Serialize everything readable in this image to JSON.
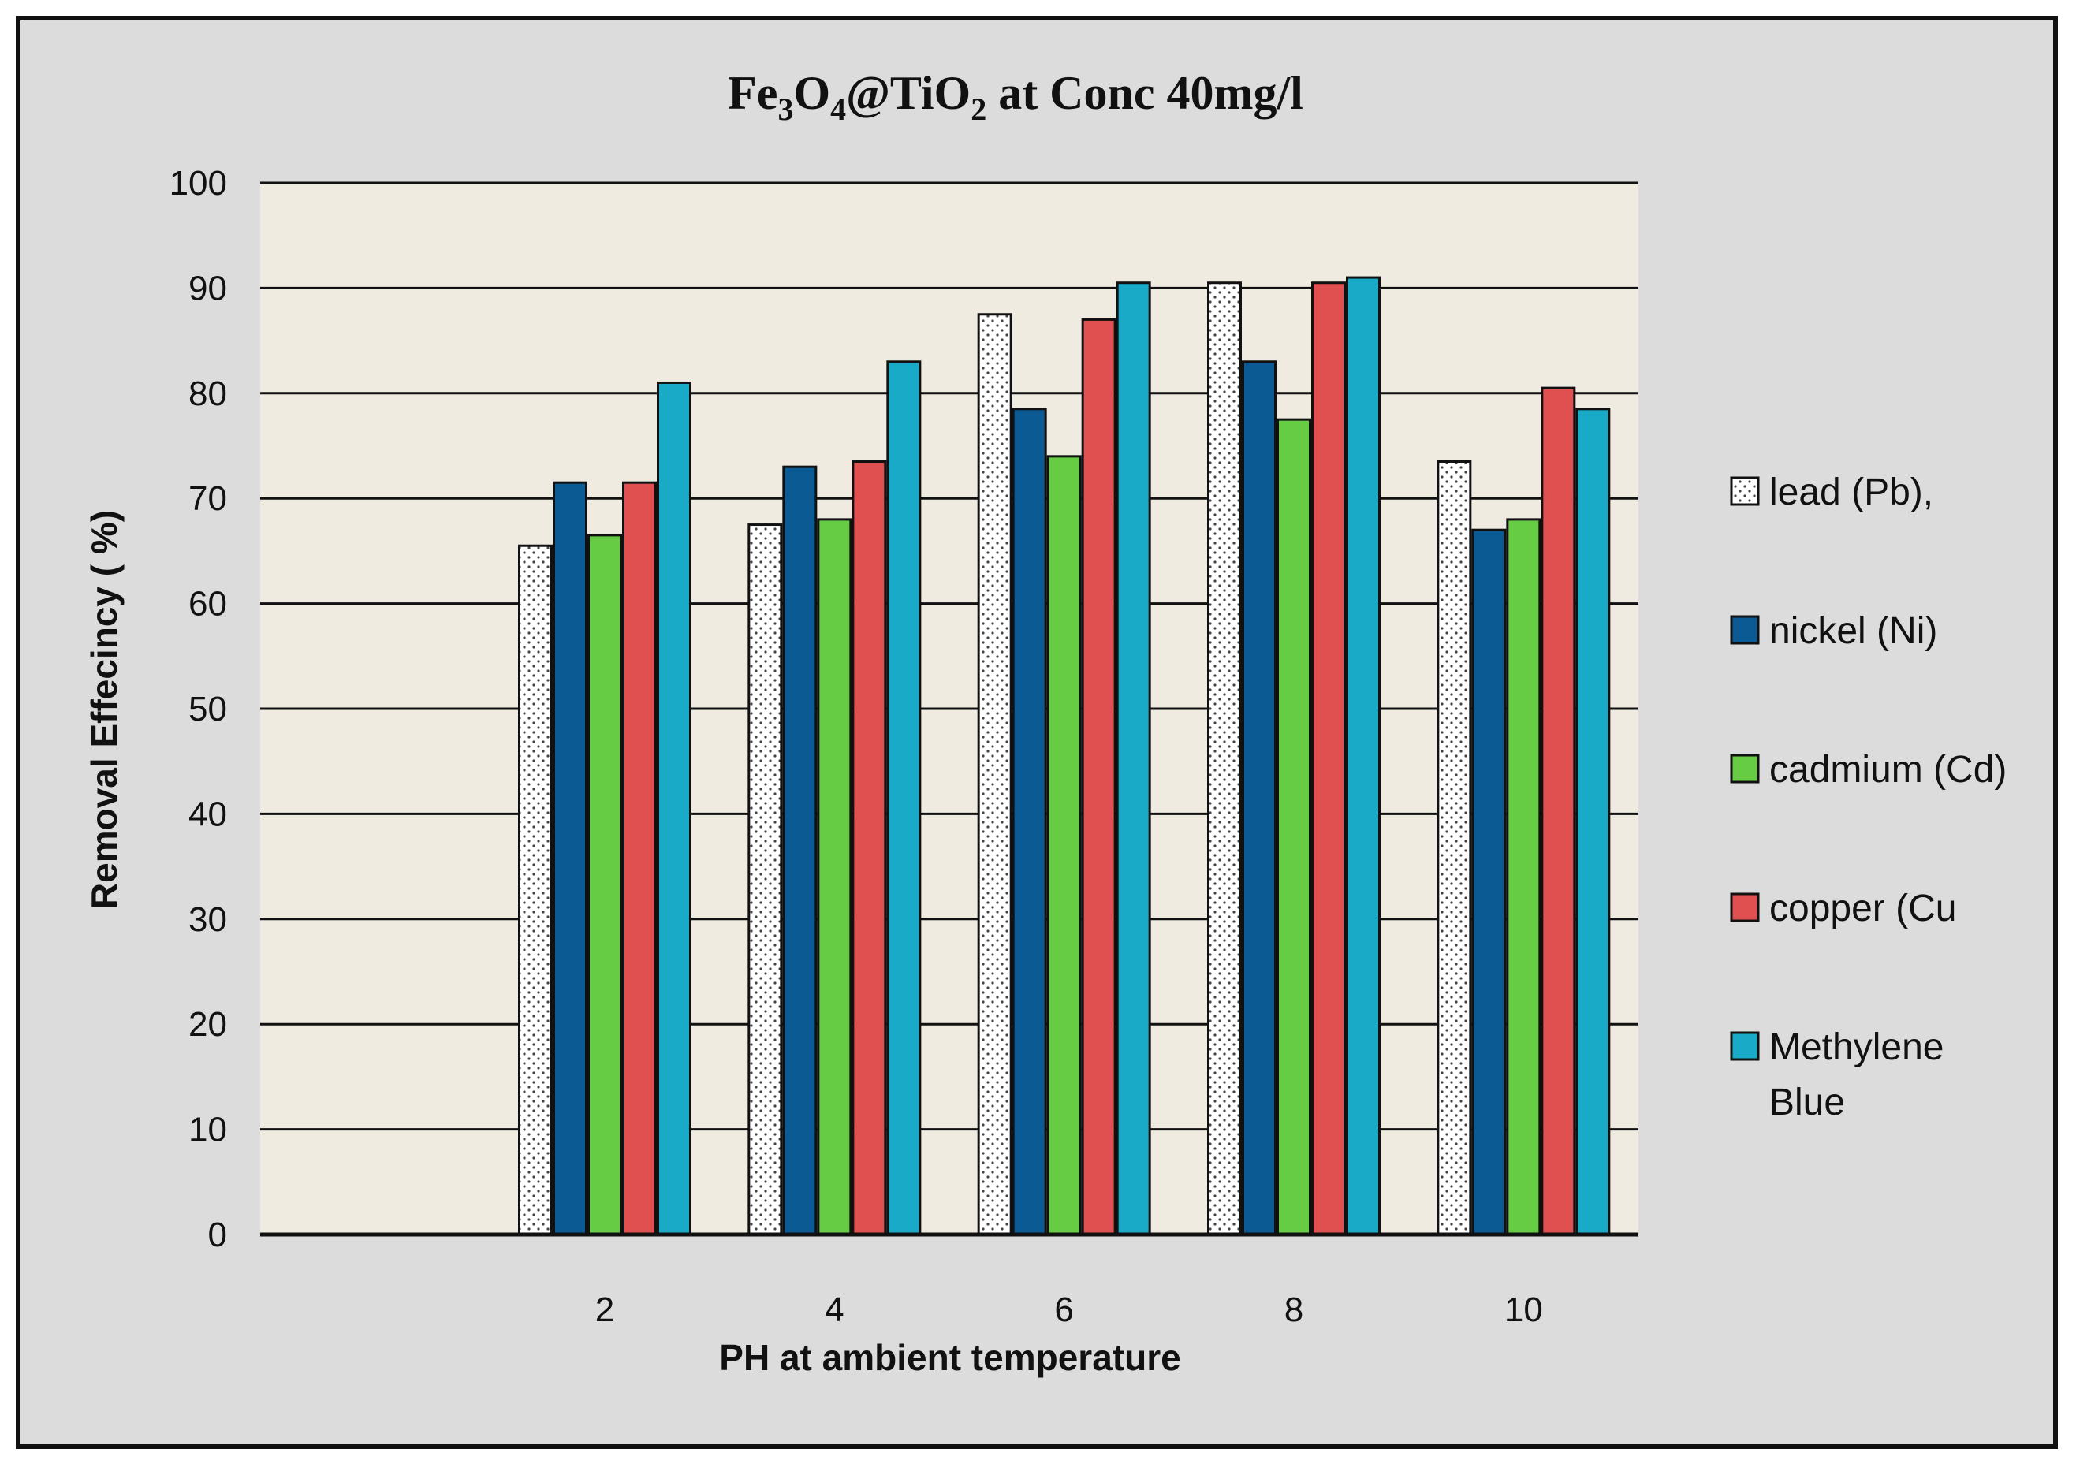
{
  "chart_data": {
    "type": "bar",
    "title": {
      "prefix": "Fe",
      "sub1": "3",
      "mid1": "O",
      "sub2": "4",
      "mid2": "@TiO",
      "sub3": "2",
      "suffix": " at Conc 40mg/l"
    },
    "xlabel": "PH  at ambient temperature",
    "ylabel": "Removal  Effecincy  ( %)",
    "ylim": [
      0,
      100
    ],
    "yticks": [
      0,
      10,
      20,
      30,
      40,
      50,
      60,
      70,
      80,
      90,
      100
    ],
    "category_slots": [
      "",
      "2",
      "4",
      "6",
      "8",
      "10"
    ],
    "categories": [
      "2",
      "4",
      "6",
      "8",
      "10"
    ],
    "grid": true,
    "legend_position": "right",
    "series": [
      {
        "name": "lead (Pb),",
        "color": "#ffffff",
        "pattern": "dots",
        "values": [
          65.5,
          67.5,
          87.5,
          90.5,
          73.5
        ]
      },
      {
        "name": "nickel (Ni)",
        "color": "#0b5a93",
        "values": [
          71.5,
          73,
          78.5,
          83,
          67
        ]
      },
      {
        "name": "cadmium (Cd)",
        "color": "#66cc44",
        "values": [
          66.5,
          68,
          74,
          77.5,
          68
        ]
      },
      {
        "name": "copper (Cu",
        "color": "#e05050",
        "values": [
          71.5,
          73.5,
          87,
          90.5,
          80.5
        ]
      },
      {
        "name": "Methylene Blue",
        "color": "#19aac8",
        "values": [
          81,
          83,
          90.5,
          91,
          78.5
        ]
      }
    ],
    "legend_lines": [
      [
        "lead (Pb),"
      ],
      [
        "nickel (Ni)"
      ],
      [
        "cadmium (Cd)"
      ],
      [
        "copper (Cu"
      ],
      [
        "Methylene",
        "Blue"
      ]
    ],
    "colors": {
      "frame_bg": "#dcdcdc",
      "plot_bg": "#efebe0",
      "grid": "#111111"
    }
  }
}
